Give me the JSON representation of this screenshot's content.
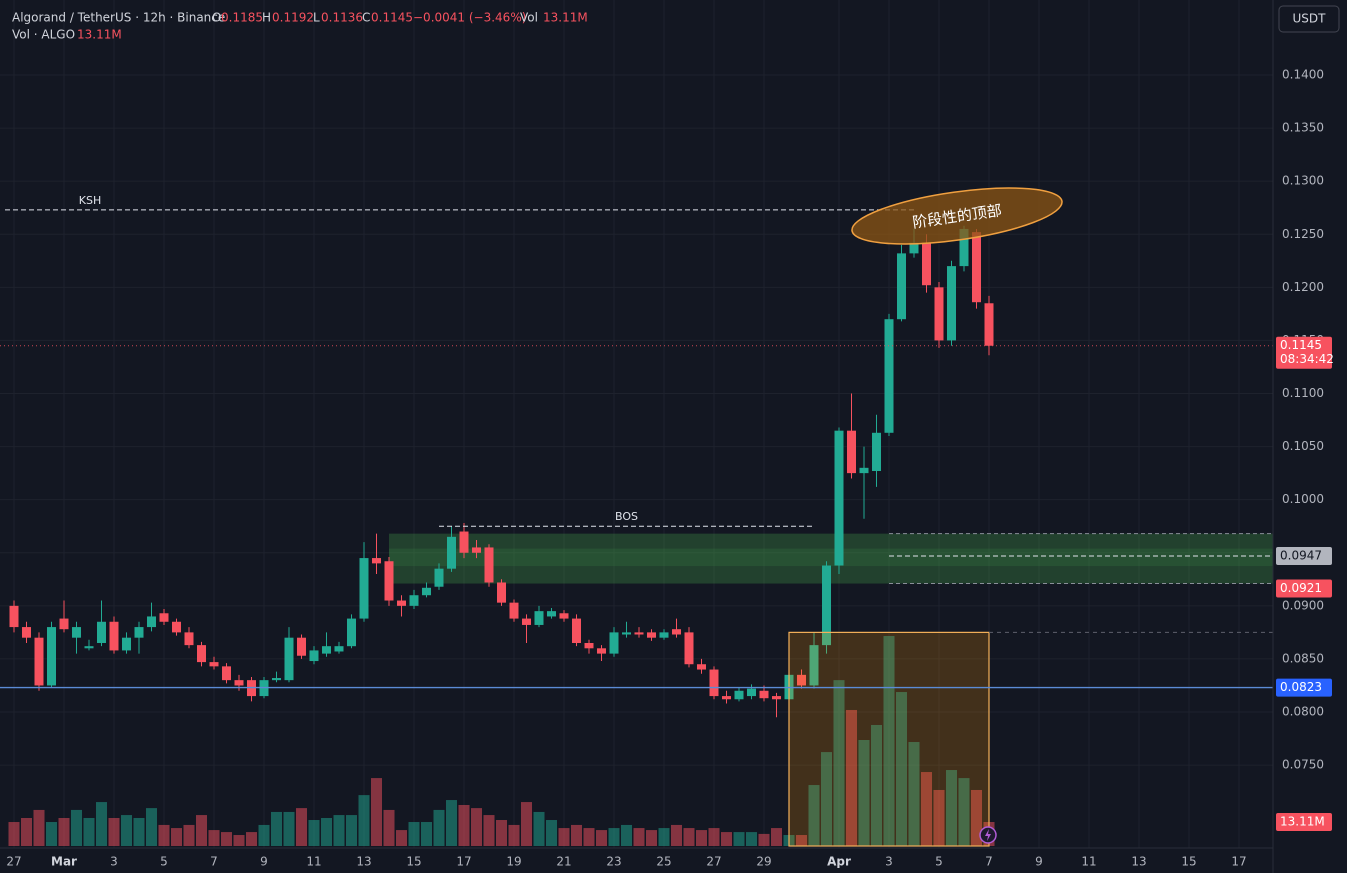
{
  "header": {
    "symbol": "Algorand / TetherUS · 12h · Binance",
    "o": "O",
    "h": "H",
    "l": "L",
    "c": "C",
    "change": "−0.0041 (−3.46%)",
    "vol": "Vol",
    "vol_value": "13.11M",
    "vol_line": "Vol · ALGO",
    "currency": "USDT",
    "countdown": "08:34:42"
  },
  "chart_data": {
    "type": "candlestick",
    "open": [
      0.09,
      0.088,
      0.087,
      0.0825,
      0.0888,
      0.087,
      0.086,
      0.0865,
      0.0885,
      0.0858,
      0.087,
      0.088,
      0.0893,
      0.0885,
      0.0875,
      0.0863,
      0.0847,
      0.0843,
      0.083,
      0.083,
      0.0815,
      0.083,
      0.083,
      0.087,
      0.0848,
      0.0855,
      0.0857,
      0.0862,
      0.0888,
      0.0945,
      0.0942,
      0.0905,
      0.09,
      0.091,
      0.0918,
      0.0935,
      0.097,
      0.0955,
      0.0955,
      0.0922,
      0.0903,
      0.0888,
      0.0882,
      0.089,
      0.0893,
      0.0888,
      0.0865,
      0.086,
      0.0855,
      0.0873,
      0.0875,
      0.0875,
      0.087,
      0.0878,
      0.0875,
      0.0845,
      0.084,
      0.0815,
      0.0812,
      0.0815,
      0.082,
      0.0815,
      0.0812,
      0.0835,
      0.0825,
      0.0863,
      0.0938,
      0.1065,
      0.1025,
      0.1027,
      0.1063,
      0.117,
      0.1232,
      0.1242,
      0.12,
      0.115,
      0.122,
      0.1252,
      0.1185
    ],
    "high": [
      0.0905,
      0.0885,
      0.0875,
      0.0885,
      0.0905,
      0.0885,
      0.0868,
      0.0905,
      0.089,
      0.0875,
      0.0885,
      0.0903,
      0.0897,
      0.0888,
      0.088,
      0.0866,
      0.0852,
      0.0846,
      0.0835,
      0.0833,
      0.0833,
      0.0838,
      0.088,
      0.0873,
      0.0862,
      0.0875,
      0.0866,
      0.0892,
      0.096,
      0.0968,
      0.0946,
      0.091,
      0.0915,
      0.0922,
      0.094,
      0.0975,
      0.0978,
      0.0962,
      0.0958,
      0.0925,
      0.0906,
      0.0892,
      0.09,
      0.0898,
      0.0896,
      0.0892,
      0.0868,
      0.0863,
      0.088,
      0.0885,
      0.088,
      0.0878,
      0.0878,
      0.0888,
      0.088,
      0.085,
      0.0843,
      0.082,
      0.0823,
      0.0826,
      0.0825,
      0.0818,
      0.0838,
      0.084,
      0.0875,
      0.0942,
      0.1068,
      0.11,
      0.105,
      0.108,
      0.1175,
      0.124,
      0.1255,
      0.125,
      0.1205,
      0.1225,
      0.1258,
      0.1255,
      0.1192
    ],
    "low": [
      0.0875,
      0.0865,
      0.082,
      0.0823,
      0.0875,
      0.0855,
      0.0858,
      0.0862,
      0.0855,
      0.0855,
      0.0855,
      0.0876,
      0.0882,
      0.0872,
      0.086,
      0.0843,
      0.084,
      0.0827,
      0.082,
      0.081,
      0.0813,
      0.0828,
      0.0828,
      0.085,
      0.0845,
      0.0852,
      0.0855,
      0.086,
      0.0885,
      0.093,
      0.09,
      0.089,
      0.0897,
      0.0908,
      0.0915,
      0.0932,
      0.0945,
      0.0945,
      0.0918,
      0.09,
      0.0885,
      0.0865,
      0.088,
      0.0888,
      0.0885,
      0.0862,
      0.0855,
      0.0848,
      0.0852,
      0.087,
      0.087,
      0.0867,
      0.0868,
      0.087,
      0.0842,
      0.0836,
      0.0812,
      0.0808,
      0.081,
      0.0812,
      0.081,
      0.0795,
      0.081,
      0.0822,
      0.0822,
      0.0855,
      0.093,
      0.102,
      0.0982,
      0.1012,
      0.106,
      0.1168,
      0.1228,
      0.1195,
      0.1143,
      0.1145,
      0.1215,
      0.118,
      0.1136
    ],
    "close": [
      0.088,
      0.087,
      0.0825,
      0.088,
      0.0878,
      0.088,
      0.0862,
      0.0885,
      0.0858,
      0.087,
      0.088,
      0.089,
      0.0885,
      0.0875,
      0.0863,
      0.0847,
      0.0843,
      0.083,
      0.0825,
      0.0815,
      0.083,
      0.0832,
      0.087,
      0.0853,
      0.0858,
      0.0862,
      0.0862,
      0.0888,
      0.0945,
      0.094,
      0.0905,
      0.09,
      0.091,
      0.0917,
      0.0935,
      0.0965,
      0.095,
      0.095,
      0.0922,
      0.0903,
      0.0888,
      0.0882,
      0.0895,
      0.0895,
      0.0888,
      0.0865,
      0.086,
      0.0855,
      0.0875,
      0.0875,
      0.0873,
      0.087,
      0.0875,
      0.0873,
      0.0845,
      0.084,
      0.0815,
      0.0812,
      0.082,
      0.0822,
      0.0813,
      0.0812,
      0.0835,
      0.0825,
      0.0863,
      0.0938,
      0.1065,
      0.1025,
      0.103,
      0.1063,
      0.117,
      0.1232,
      0.1242,
      0.1202,
      0.115,
      0.122,
      0.1255,
      0.1186,
      0.1145
    ],
    "volume": [
      13.1,
      15.3,
      19.7,
      13.1,
      15.3,
      19.7,
      15.3,
      24.0,
      15.3,
      16.9,
      15.3,
      20.7,
      11.5,
      9.8,
      11.5,
      16.9,
      8.7,
      7.6,
      6.0,
      7.6,
      11.5,
      18.6,
      18.6,
      20.7,
      14.2,
      15.3,
      16.9,
      16.9,
      27.8,
      37.1,
      19.7,
      8.7,
      13.1,
      13.1,
      19.7,
      25.1,
      22.4,
      20.7,
      16.9,
      14.2,
      11.5,
      24.0,
      18.6,
      14.2,
      9.8,
      11.5,
      9.8,
      8.7,
      9.8,
      11.5,
      9.8,
      8.7,
      9.8,
      11.5,
      9.8,
      8.7,
      9.8,
      7.6,
      7.6,
      7.6,
      6.6,
      9.8,
      6.0,
      6.0,
      33.3,
      51.3,
      90.6,
      74.3,
      57.9,
      66.1,
      114.7,
      84.1,
      56.8,
      40.4,
      30.6,
      41.5,
      37.1,
      30.6,
      13.11
    ],
    "up_color": "#22ab94",
    "down_color": "#f7525f",
    "ylim": [
      0.068,
      0.147
    ],
    "volume_ylim": [
      0,
      130
    ],
    "xlim": [
      -1.12,
      100.72
    ],
    "yticks": [
      {
        "value": 0.075,
        "label": "0.0750"
      },
      {
        "value": 0.08,
        "label": "0.0800"
      },
      {
        "value": 0.085,
        "label": "0.0850"
      },
      {
        "value": 0.09,
        "label": "0.0900"
      },
      {
        "value": 0.095,
        "label": "0.0950"
      },
      {
        "value": 0.1,
        "label": "0.1000"
      },
      {
        "value": 0.105,
        "label": "0.1050"
      },
      {
        "value": 0.11,
        "label": "0.1100"
      },
      {
        "value": 0.115,
        "label": "0.1150"
      },
      {
        "value": 0.12,
        "label": "0.1200"
      },
      {
        "value": 0.125,
        "label": "0.1250"
      },
      {
        "value": 0.13,
        "label": "0.1300"
      },
      {
        "value": 0.135,
        "label": "0.1350"
      },
      {
        "value": 0.14,
        "label": "0.1400"
      }
    ],
    "xticks": [
      {
        "value": 0,
        "label": "27"
      },
      {
        "value": 4,
        "label": "Mar"
      },
      {
        "value": 8,
        "label": "3"
      },
      {
        "value": 12,
        "label": "5"
      },
      {
        "value": 16,
        "label": "7"
      },
      {
        "value": 20,
        "label": "9"
      },
      {
        "value": 24,
        "label": "11"
      },
      {
        "value": 28,
        "label": "13"
      },
      {
        "value": 32,
        "label": "15"
      },
      {
        "value": 36,
        "label": "17"
      },
      {
        "value": 40,
        "label": "19"
      },
      {
        "value": 44,
        "label": "21"
      },
      {
        "value": 48,
        "label": "23"
      },
      {
        "value": 52,
        "label": "25"
      },
      {
        "value": 56,
        "label": "27"
      },
      {
        "value": 60,
        "label": "29"
      },
      {
        "value": 66,
        "label": "Apr"
      },
      {
        "value": 70,
        "label": "3"
      },
      {
        "value": 74,
        "label": "5"
      },
      {
        "value": 78,
        "label": "7"
      },
      {
        "value": 82,
        "label": "9"
      },
      {
        "value": 86,
        "label": "11"
      },
      {
        "value": 90,
        "label": "13"
      },
      {
        "value": 94,
        "label": "15"
      },
      {
        "value": 98,
        "label": "17"
      }
    ],
    "grid": true,
    "annotations": {
      "ksh": {
        "label": "KSH",
        "value": 0.1273
      },
      "bos": {
        "label": "BOS",
        "value": 0.0975
      },
      "zone": [
        0.0921,
        0.0968
      ],
      "level": 0.0947,
      "support": 0.0823,
      "box_top": 0.0875,
      "note": "阶段性的顶部"
    }
  }
}
